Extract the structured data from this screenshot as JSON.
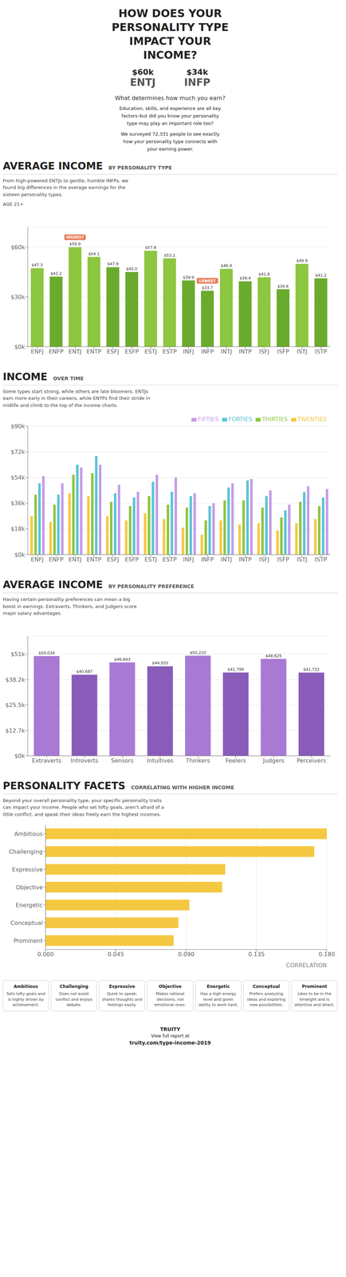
{
  "title": "HOW DOES YOUR\nPERSONALITY TYPE\nIMPACT YOUR\nINCOME?",
  "subtitle": "What determines how much you earn?",
  "annotations": [
    {
      "text": "$60k",
      "label": "ENTJ"
    },
    {
      "text": "$34k",
      "label": "INFP"
    },
    "Education, skills, and experience are all key\nfactors–but did you know your personality\ntype may play an important role too?",
    "We surveyed 72,331 people to see exactly\nhow your personality type connects with\nyour earning power."
  ],
  "footer": [
    "TRUITY",
    "View full report at",
    "truity.com/type-income-2019"
  ],
  "chart_data": [
    {
      "type": "bar",
      "title": "AVERAGE INCOME",
      "subtitle": "BY PERSONALITY TYPE",
      "annotations": [
        "From high-powered ENTJs to gentle, humble INFPs, we\nfound big differences in the average earnings for the\nsixteen personality types.",
        "AGE 21+",
        {
          "text": "HIGHEST",
          "x": "ENTJ"
        },
        {
          "text": "LOWEST",
          "x": "INFP"
        }
      ],
      "categories": [
        "ENFJ",
        "ENFP",
        "ENTJ",
        "ENTP",
        "ESFJ",
        "ESFP",
        "ESTJ",
        "ESTP",
        "INFJ",
        "INFP",
        "INTJ",
        "INTP",
        "ISFJ",
        "ISFP",
        "ISTJ",
        "ISTP"
      ],
      "values": [
        47.3,
        42.2,
        59.9,
        54.1,
        47.9,
        45.0,
        57.8,
        53.2,
        39.9,
        33.7,
        46.9,
        39.4,
        41.8,
        34.6,
        49.9,
        41.2
      ],
      "value_labels": [
        "$47.3",
        "$42.2",
        "$59.9",
        "$54.1",
        "$47.9",
        "$45.0",
        "$57.8",
        "$53.2",
        "$39.9",
        "$33.7",
        "$46.9",
        "$39.4",
        "$41.8",
        "$34.6",
        "$49.9",
        "$41.2"
      ],
      "colors": [
        "#8dc63f",
        "#6aab2e",
        "#8dc63f",
        "#8dc63f",
        "#6aab2e",
        "#6aab2e",
        "#8dc63f",
        "#8dc63f",
        "#6aab2e",
        "#6aab2e",
        "#8dc63f",
        "#6aab2e",
        "#8dc63f",
        "#6aab2e",
        "#8dc63f",
        "#6aab2e"
      ],
      "ylim": [
        0,
        72
      ],
      "yticks": [
        {
          "value": 0,
          "label": "$0k"
        },
        {
          "value": 30,
          "label": "$30k"
        },
        {
          "value": 60,
          "label": "$60k"
        }
      ],
      "grid": true,
      "data_labels": true
    },
    {
      "type": "bar",
      "title": "INCOME",
      "subtitle": "OVER TIME",
      "annotations": [
        "Some types start strong, while others are late bloomers. ENTJs\nearn more early in their careers, while ENTPs find their stride in\nmidlife and climb to the top of the income charts."
      ],
      "categories": [
        "ENFJ",
        "ENFP",
        "ENTJ",
        "ENTP",
        "ESFJ",
        "ESFP",
        "ESTJ",
        "ESTP",
        "INFJ",
        "INFP",
        "INTJ",
        "INTP",
        "ISFJ",
        "ISFP",
        "ISTJ",
        "ISTP"
      ],
      "series": [
        {
          "name": "TWENTIES",
          "color": "#f5c842",
          "values": [
            27,
            23,
            43,
            41,
            27,
            24,
            29,
            25,
            19,
            14,
            24,
            21,
            22,
            17,
            22,
            25
          ]
        },
        {
          "name": "THIRTIES",
          "color": "#8dc63f",
          "values": [
            42,
            35,
            56,
            57,
            37,
            34,
            41,
            35,
            33,
            24,
            38,
            38,
            33,
            26,
            37,
            34
          ]
        },
        {
          "name": "FORTIES",
          "color": "#5bc4d6",
          "values": [
            50,
            42,
            63,
            69,
            43,
            40,
            51,
            44,
            41,
            34,
            47,
            52,
            41,
            31,
            44,
            40
          ]
        },
        {
          "name": "FIFTIES",
          "color": "#c49de8",
          "values": [
            55,
            50,
            61,
            63,
            49,
            44,
            56,
            54,
            43,
            36,
            50,
            53,
            45,
            35,
            48,
            46
          ]
        }
      ],
      "ylim": [
        0,
        90
      ],
      "yticks": [
        {
          "value": 0,
          "label": "$0k"
        },
        {
          "value": 18,
          "label": "$18k"
        },
        {
          "value": 36,
          "label": "$36k"
        },
        {
          "value": 54,
          "label": "$54k"
        },
        {
          "value": 72,
          "label": "$72k"
        },
        {
          "value": 90,
          "label": "$90k"
        }
      ],
      "grid": true,
      "legend": "upper right"
    },
    {
      "type": "bar",
      "title": "AVERAGE INCOME",
      "subtitle": "BY PERSONALITY PREFERENCE",
      "annotations": [
        "Having certain personality preferences can mean a big\nboost in earnings. Extraverts, Thinkers, and Judgers score\nmajor salary advantages."
      ],
      "categories": [
        "Extraverts",
        "Introverts",
        "Sensors",
        "Intuitives",
        "Thinkers",
        "Feelers",
        "Judgers",
        "Perceivers"
      ],
      "values": [
        50034,
        40687,
        46843,
        44933,
        50210,
        41799,
        48625,
        41722
      ],
      "value_labels": [
        "$50,034",
        "$40,687",
        "$46,843",
        "$44,933",
        "$50,210",
        "$41,799",
        "$48,625",
        "$41,722"
      ],
      "colors": [
        "#a87ad4",
        "#8a5cba",
        "#a87ad4",
        "#8a5cba",
        "#a87ad4",
        "#8a5cba",
        "#a87ad4",
        "#8a5cba"
      ],
      "ylim": [
        0,
        60000
      ],
      "yticks": [
        {
          "value": 0,
          "label": "$0k"
        },
        {
          "value": 12700,
          "label": "$12.7k"
        },
        {
          "value": 25500,
          "label": "$25.5k"
        },
        {
          "value": 38200,
          "label": "$38.2k"
        },
        {
          "value": 51000,
          "label": "$51k"
        }
      ],
      "grid": true,
      "data_labels": true
    },
    {
      "type": "bar",
      "orientation": "horizontal",
      "title": "PERSONALITY FACETS",
      "subtitle": "CORRELATING WITH HIGHER INCOME",
      "annotations": [
        "Beyond your overall personality type, your specific personality traits\ncan impact your income. People who set lofty goals, aren’t afraid of a\nlittle conflict, and speak their ideas freely earn the highest incomes.",
        {
          "label": "Ambitious",
          "text": "Sets lofty goals and\nis highly driven by\nachievement."
        },
        {
          "label": "Challenging",
          "text": "Does not avoid\nconflict and enjoys\ndebate."
        },
        {
          "label": "Expressive",
          "text": "Quick to speak;\nshares thoughts and\nfeelings easily."
        },
        {
          "label": "Objective",
          "text": "Makes rational\ndecisions, not\nemotional ones."
        },
        {
          "label": "Energetic",
          "text": "Has a high energy\nlevel and given\nability to work hard."
        },
        {
          "label": "Conceptual",
          "text": "Prefers analyzing\nideas and exploring\nnew possibilities."
        },
        {
          "label": "Prominent",
          "text": "Likes to be in the\nlimelight and is\nattentive and direct."
        }
      ],
      "categories": [
        "Ambitious",
        "Challenging",
        "Expressive",
        "Objective",
        "Energetic",
        "Conceptual",
        "Prominent"
      ],
      "values": [
        0.18,
        0.172,
        0.115,
        0.113,
        0.092,
        0.085,
        0.082
      ],
      "color": "#f5c842",
      "x_label": "CORRELATION",
      "xlim": [
        0,
        0.18
      ],
      "xticks": [
        {
          "value": 0,
          "label": "0.000"
        },
        {
          "value": 0.045,
          "label": "0.045"
        },
        {
          "value": 0.09,
          "label": "0.090"
        },
        {
          "value": 0.135,
          "label": "0.135"
        },
        {
          "value": 0.18,
          "label": "0.180"
        }
      ],
      "grid": true
    }
  ]
}
